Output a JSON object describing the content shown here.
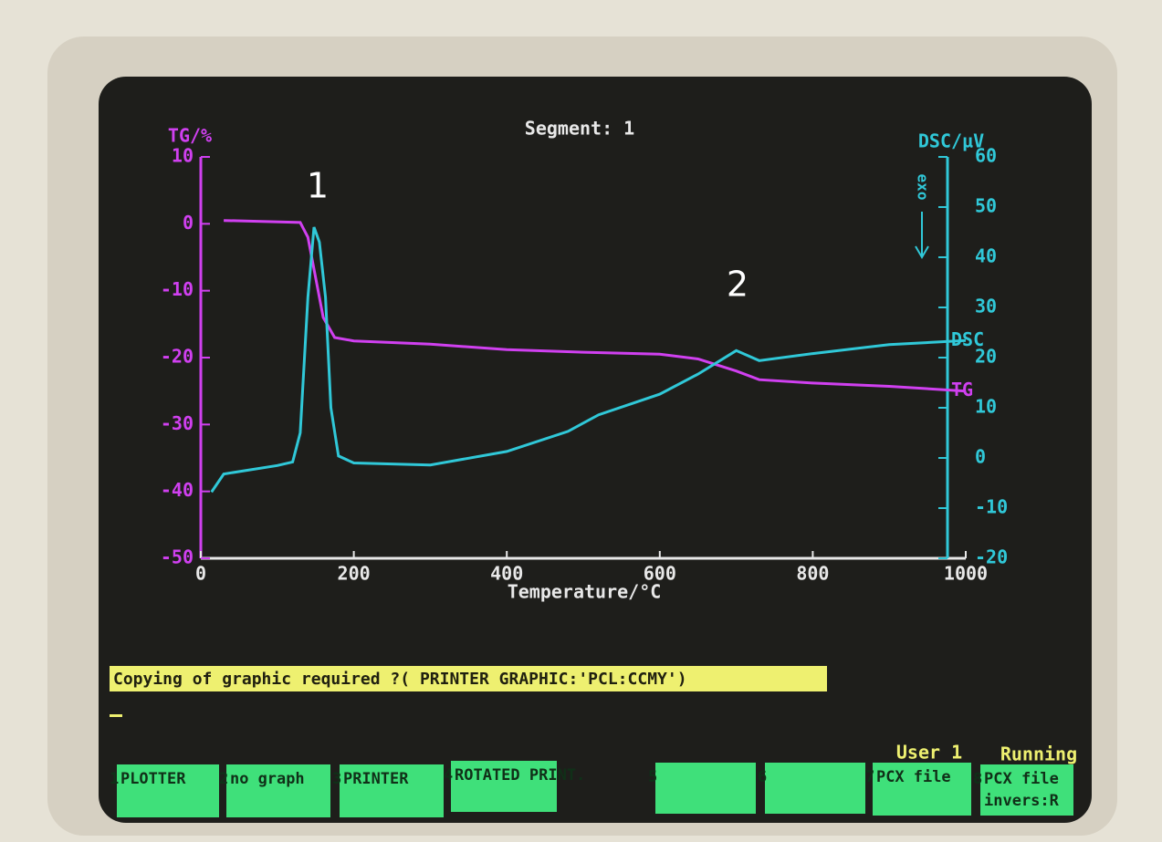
{
  "chart_data": {
    "type": "line",
    "title": "Segment: 1",
    "x_label": "Temperature/°C",
    "y_label": "TG/%",
    "y2_label": "DSC/µV",
    "annotations": [
      "1",
      "2"
    ],
    "exo_label": "exo",
    "xlim": [
      0,
      1000
    ],
    "xticks": [
      0,
      200,
      400,
      600,
      800,
      1000
    ],
    "ylim": [
      -50,
      10
    ],
    "yticks": [
      10,
      0,
      -10,
      -20,
      -30,
      -40,
      -50
    ],
    "y2lim": [
      -20,
      60
    ],
    "y2ticks": [
      60,
      50,
      40,
      30,
      20,
      10,
      0,
      -10,
      -20
    ],
    "series": [
      {
        "name": "TG",
        "color": "#d040f0",
        "axis": "y",
        "x": [
          30,
          130,
          140,
          150,
          160,
          175,
          200,
          300,
          400,
          500,
          600,
          650,
          700,
          730,
          800,
          900,
          1000
        ],
        "values": [
          0.5,
          0.2,
          -2,
          -8,
          -14,
          -17,
          -17.5,
          -18,
          -18.8,
          -19.2,
          -19.5,
          -20.2,
          -22,
          -23.3,
          -23.8,
          -24.3,
          -25
        ]
      },
      {
        "name": "DSC",
        "color": "#30c8d8",
        "axis": "y2",
        "x": [
          14,
          30,
          100,
          120,
          130,
          140,
          148,
          155,
          163,
          170,
          180,
          200,
          300,
          400,
          480,
          520,
          600,
          650,
          700,
          730,
          800,
          900,
          1000
        ],
        "values": [
          -6.8,
          -3.2,
          -1.5,
          -0.8,
          5,
          32,
          46,
          43,
          32,
          10,
          0.4,
          -1,
          -1.4,
          1.3,
          5.3,
          8.6,
          12.7,
          16.7,
          21.4,
          19.4,
          20.8,
          22.6,
          23.4
        ]
      }
    ]
  },
  "prompt": "Copying of graphic required ?( PRINTER GRAPHIC:'PCL:CCMY')",
  "status": {
    "user": "User 1",
    "state": "Running"
  },
  "function_keys": [
    {
      "number": "1",
      "label": "PLOTTER"
    },
    {
      "number": "2",
      "label": "no graph"
    },
    {
      "number": "3",
      "label": "PRINTER"
    },
    {
      "number": "4",
      "label": "ROTATED PRINT."
    },
    {
      "number": "5"
    },
    {
      "number": "6"
    },
    {
      "number": "7",
      "label": "PCX file"
    },
    {
      "number": "8",
      "label": "PCX file invers:R"
    }
  ]
}
